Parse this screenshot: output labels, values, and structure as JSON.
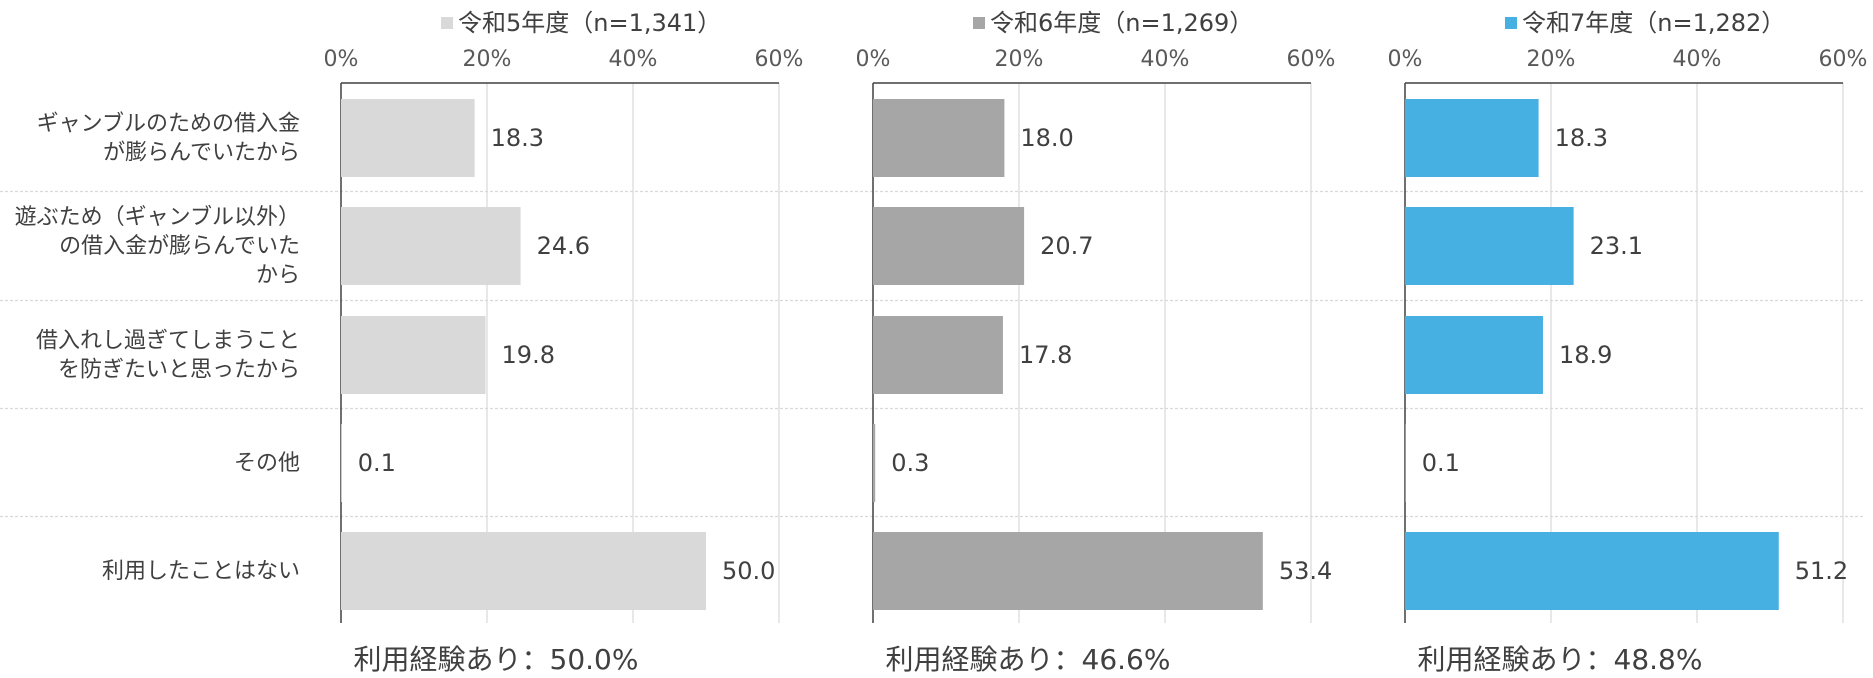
{
  "chart_data": {
    "type": "bar",
    "orientation": "horizontal",
    "categories": [
      "ギャンブルのための借入金\nが膨らんでいたから",
      "遊ぶため（ギャンブル以外）\nの借入金が膨らんでいた\nから",
      "借入れし過ぎてしまうこと\nを防ぎたいと思ったから",
      "その他",
      "利用したことはない"
    ],
    "xlim": [
      0,
      60
    ],
    "x_ticks": [
      "0%",
      "20%",
      "40%",
      "60%"
    ],
    "grid": true,
    "series": [
      {
        "name": "令和5年度（n=1,341）",
        "color": "#d9d9d9",
        "values": [
          18.3,
          24.6,
          19.8,
          0.1,
          50.0
        ],
        "value_labels": [
          "18.3",
          "24.6",
          "19.8",
          "0.1",
          "50.0"
        ],
        "footer": "利用経験あり：50.0%"
      },
      {
        "name": "令和6年度（n=1,269）",
        "color": "#a6a6a6",
        "values": [
          18.0,
          20.7,
          17.8,
          0.3,
          53.4
        ],
        "value_labels": [
          "18.0",
          "20.7",
          "17.8",
          "0.3",
          "53.4"
        ],
        "footer": "利用経験あり：46.6%"
      },
      {
        "name": "令和7年度（n=1,282）",
        "color": "#45b0e1",
        "values": [
          18.3,
          23.1,
          18.9,
          0.1,
          51.2
        ],
        "value_labels": [
          "18.3",
          "23.1",
          "18.9",
          "0.1",
          "51.2"
        ],
        "footer": "利用経験あり：48.8%"
      }
    ]
  }
}
